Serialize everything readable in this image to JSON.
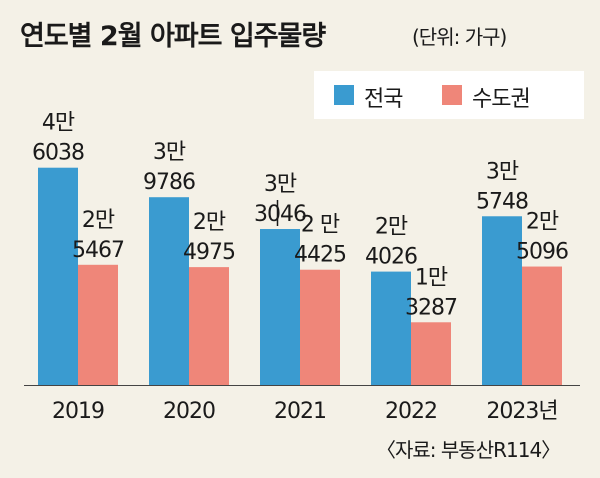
{
  "chart_data": {
    "type": "bar",
    "title": "연도별 2월 아파트 입주물량",
    "unit_note": "(단위: 가구)",
    "categories": [
      "2019",
      "2020",
      "2021",
      "2022",
      "2023년"
    ],
    "series": [
      {
        "name": "전국",
        "color": "#3a9bd0",
        "values": [
          46038,
          39786,
          33046,
          24026,
          35748
        ],
        "labels": [
          [
            "4만",
            "6038"
          ],
          [
            "3만",
            "9786"
          ],
          [
            "3만",
            "3046"
          ],
          [
            "2만",
            "4026"
          ],
          [
            "3만",
            "5748"
          ]
        ]
      },
      {
        "name": "수도권",
        "color": "#ef8679",
        "values": [
          25467,
          24975,
          24425,
          13287,
          25096
        ],
        "labels": [
          [
            "2만",
            "5467"
          ],
          [
            "2만",
            "4975"
          ],
          [
            "2 만",
            "4425"
          ],
          [
            "1만",
            "3287"
          ],
          [
            "2만",
            "5096"
          ]
        ]
      }
    ],
    "ylim": [
      0,
      50000
    ],
    "grid": false,
    "legend_position": "top-right"
  },
  "source": "〈자료: 부동산R114〉"
}
